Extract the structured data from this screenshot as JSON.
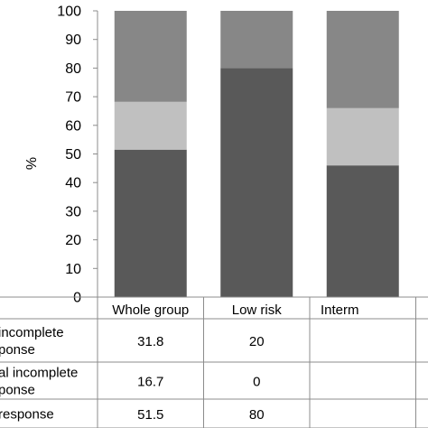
{
  "chart_data": {
    "type": "bar",
    "stacked": true,
    "orientation": "vertical",
    "ylabel": "%",
    "ylim": [
      0,
      100
    ],
    "yticks": [
      0,
      10,
      20,
      30,
      40,
      50,
      60,
      70,
      80,
      90,
      100
    ],
    "grid": false,
    "categories": [
      "Whole group",
      "Low risk",
      "Interm"
    ],
    "series": [
      {
        "name": "response",
        "color": "#595959",
        "values": [
          51.5,
          80,
          46
        ]
      },
      {
        "name": "al incomplete\nponse",
        "color": "#c0c0c0",
        "values": [
          16.7,
          0,
          20
        ]
      },
      {
        "name": "incomplete\nponse",
        "color": "#878787",
        "values": [
          31.8,
          20,
          34
        ]
      }
    ],
    "table": {
      "rows": [
        {
          "label": "incomplete\nponse",
          "cells": [
            "31.8",
            "20",
            ""
          ]
        },
        {
          "label": "al incomplete\nponse",
          "cells": [
            "16.7",
            "0",
            ""
          ]
        },
        {
          "label": "response",
          "cells": [
            "51.5",
            "80",
            ""
          ]
        }
      ]
    }
  }
}
